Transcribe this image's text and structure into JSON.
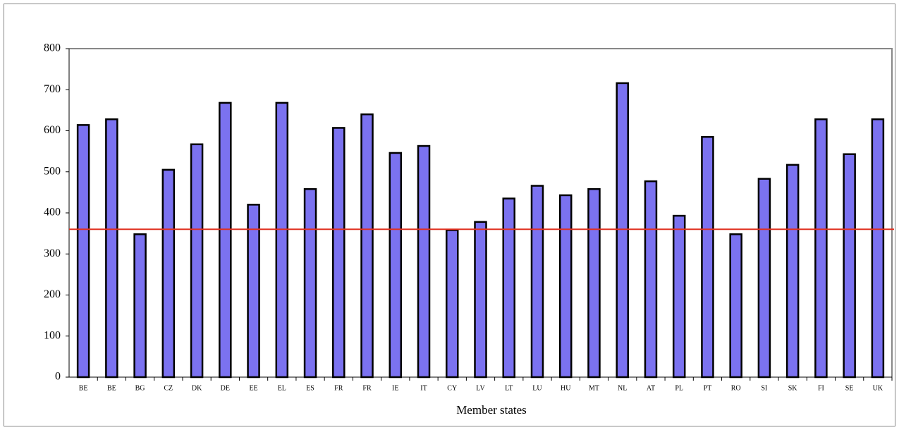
{
  "chart_data": {
    "type": "bar",
    "x_label": "Member states",
    "categories": [
      "BE",
      "BE",
      "BG",
      "CZ",
      "DK",
      "DE",
      "EE",
      "EL",
      "ES",
      "FR",
      "FR",
      "IE",
      "IT",
      "CY",
      "LV",
      "LT",
      "LU",
      "HU",
      "MT",
      "NL",
      "AT",
      "PL",
      "PT",
      "RO",
      "SI",
      "SK",
      "FI",
      "SE",
      "UK"
    ],
    "values": [
      614,
      628,
      348,
      505,
      567,
      668,
      420,
      668,
      458,
      607,
      640,
      546,
      563,
      358,
      378,
      435,
      466,
      443,
      458,
      716,
      477,
      393,
      585,
      348,
      483,
      517,
      628,
      543,
      628
    ],
    "color": "#7b72f0",
    "reference_line": 360,
    "reference_color": "#e03020",
    "ylim": [
      0,
      800
    ],
    "yticks": [
      0,
      100,
      200,
      300,
      400,
      500,
      600,
      700,
      800
    ]
  }
}
